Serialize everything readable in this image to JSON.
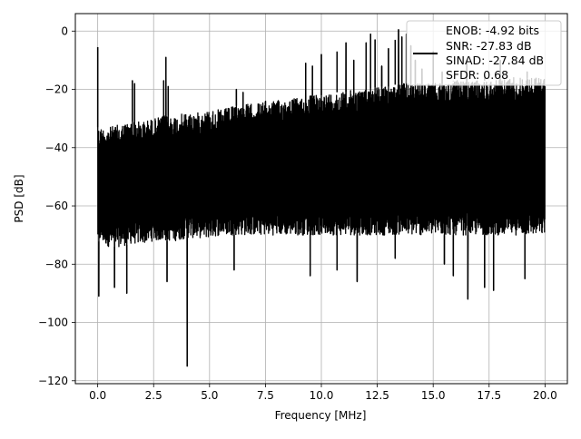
{
  "chart_data": {
    "type": "line",
    "title": "",
    "xlabel": "Frequency [MHz]",
    "ylabel": "PSD [dB]",
    "xlim": [
      -1.0,
      21.0
    ],
    "ylim": [
      -121.0,
      6.0
    ],
    "xticks": [
      0.0,
      2.5,
      5.0,
      7.5,
      10.0,
      12.5,
      15.0,
      17.5,
      20.0
    ],
    "xtick_labels": [
      "0.0",
      "2.5",
      "5.0",
      "7.5",
      "10.0",
      "12.5",
      "15.0",
      "17.5",
      "20.0"
    ],
    "yticks": [
      0,
      -20,
      -40,
      -60,
      -80,
      -100,
      -120
    ],
    "ytick_labels": [
      "0",
      "−20",
      "−40",
      "−60",
      "−80",
      "−100",
      "−120"
    ],
    "grid": true,
    "legend_position": "top-right",
    "legend_lines": [
      "ENOB: -4.92 bits",
      "SNR: -27.83 dB",
      "SINAD: -27.84 dB",
      "SFDR: 0.68"
    ],
    "series": [
      {
        "color": "#000000",
        "envelope": {
          "x": [
            0.0,
            0.5,
            1.0,
            1.5,
            2.0,
            2.5,
            3.0,
            3.5,
            4.0,
            4.5,
            5.0,
            5.5,
            6.0,
            6.5,
            7.0,
            7.5,
            8.0,
            8.5,
            9.0,
            9.5,
            10.0,
            10.5,
            11.0,
            11.5,
            12.0,
            12.5,
            13.0,
            13.5,
            14.0,
            14.5,
            15.0,
            15.5,
            16.0,
            16.5,
            17.0,
            17.5,
            18.0,
            18.5,
            19.0,
            19.5,
            20.0
          ],
          "upper": [
            -33,
            -33,
            -32,
            -31,
            -31,
            -30,
            -29,
            -29,
            -28,
            -28,
            -27,
            -27,
            -26,
            -25,
            -25,
            -24,
            -24,
            -23,
            -23,
            -22,
            -22,
            -21,
            -21,
            -20,
            -20,
            -19,
            -19,
            -18,
            -18,
            -18,
            -18,
            -18,
            -17,
            -17,
            -17,
            -17,
            -16,
            -16,
            -16,
            -16,
            -16
          ],
          "lower": [
            -72,
            -74,
            -74,
            -73,
            -73,
            -72,
            -72,
            -72,
            -71,
            -71,
            -71,
            -70,
            -70,
            -70,
            -70,
            -70,
            -70,
            -70,
            -70,
            -70,
            -70,
            -70,
            -70,
            -70,
            -70,
            -70,
            -70,
            -70,
            -70,
            -70,
            -70,
            -70,
            -70,
            -70,
            -70,
            -70,
            -70,
            -70,
            -70,
            -70,
            -70
          ]
        },
        "peaks": [
          {
            "x": 0.0,
            "y": -5.5
          },
          {
            "x": 1.55,
            "y": -17
          },
          {
            "x": 1.65,
            "y": -18
          },
          {
            "x": 2.95,
            "y": -17
          },
          {
            "x": 3.05,
            "y": -9
          },
          {
            "x": 3.15,
            "y": -19
          },
          {
            "x": 6.2,
            "y": -20
          },
          {
            "x": 6.5,
            "y": -21
          },
          {
            "x": 9.3,
            "y": -11
          },
          {
            "x": 9.6,
            "y": -12
          },
          {
            "x": 10.0,
            "y": -8
          },
          {
            "x": 10.7,
            "y": -7
          },
          {
            "x": 11.1,
            "y": -4
          },
          {
            "x": 11.45,
            "y": -10
          },
          {
            "x": 12.0,
            "y": -4
          },
          {
            "x": 12.2,
            "y": -1
          },
          {
            "x": 12.4,
            "y": -3
          },
          {
            "x": 12.7,
            "y": -12
          },
          {
            "x": 13.0,
            "y": -6
          },
          {
            "x": 13.3,
            "y": -3
          },
          {
            "x": 13.45,
            "y": 0.5
          },
          {
            "x": 13.6,
            "y": -2
          },
          {
            "x": 13.8,
            "y": -1
          },
          {
            "x": 14.0,
            "y": -5
          },
          {
            "x": 14.2,
            "y": -10
          },
          {
            "x": 14.5,
            "y": -13
          },
          {
            "x": 15.0,
            "y": -7
          },
          {
            "x": 15.4,
            "y": -14
          },
          {
            "x": 15.9,
            "y": -17
          },
          {
            "x": 16.5,
            "y": -10
          },
          {
            "x": 17.3,
            "y": -15
          },
          {
            "x": 18.0,
            "y": -10
          },
          {
            "x": 18.6,
            "y": -16
          },
          {
            "x": 19.2,
            "y": -14
          },
          {
            "x": 19.6,
            "y": -17
          }
        ],
        "dips": [
          {
            "x": 0.05,
            "y": -91
          },
          {
            "x": 0.75,
            "y": -88
          },
          {
            "x": 1.3,
            "y": -90
          },
          {
            "x": 3.1,
            "y": -86
          },
          {
            "x": 4.0,
            "y": -115
          },
          {
            "x": 6.1,
            "y": -82
          },
          {
            "x": 9.5,
            "y": -84
          },
          {
            "x": 10.7,
            "y": -82
          },
          {
            "x": 11.6,
            "y": -86
          },
          {
            "x": 13.3,
            "y": -78
          },
          {
            "x": 15.5,
            "y": -80
          },
          {
            "x": 15.9,
            "y": -84
          },
          {
            "x": 16.55,
            "y": -92
          },
          {
            "x": 17.3,
            "y": -88
          },
          {
            "x": 17.7,
            "y": -89
          },
          {
            "x": 19.1,
            "y": -85
          }
        ]
      }
    ]
  }
}
